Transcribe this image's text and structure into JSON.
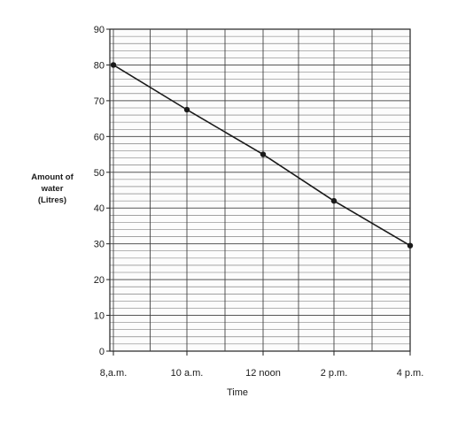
{
  "chart_data": {
    "type": "line",
    "categories": [
      "8,a.m.",
      "10 a.m.",
      "12 noon",
      "2 p.m.",
      "4 p.m."
    ],
    "series": [
      {
        "values": [
          80,
          67.5,
          55,
          42,
          29.5
        ]
      }
    ],
    "title": "",
    "xlabel": "Time",
    "ylabel_lines": [
      "Amount of",
      "water",
      "(Litres)"
    ],
    "ylim": [
      0,
      90
    ],
    "yticks": [
      0,
      10,
      20,
      30,
      40,
      50,
      60,
      70,
      80,
      90
    ],
    "grid": true,
    "line_color": "#1a1a1a",
    "grid_color": "#3a3a3a"
  }
}
